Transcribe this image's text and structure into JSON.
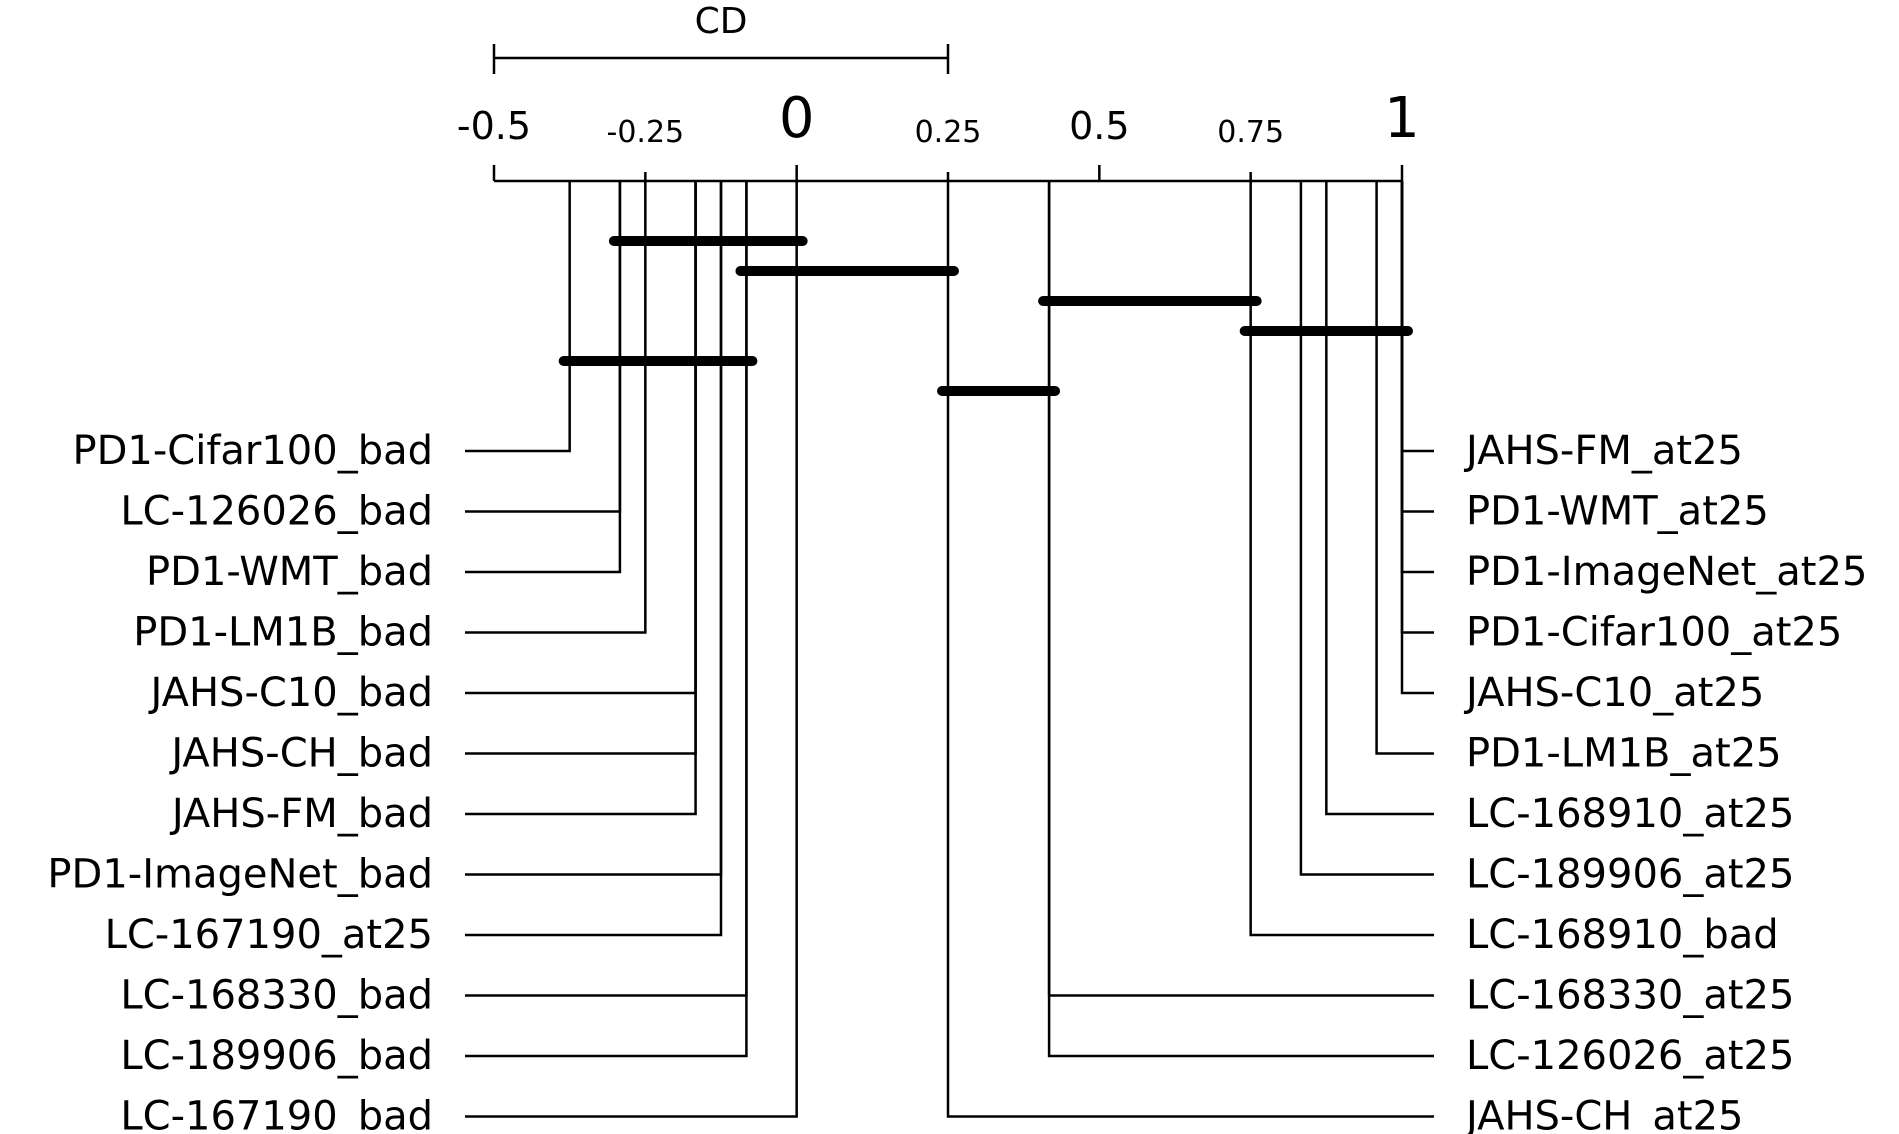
{
  "chart_data": {
    "type": "critical-difference-diagram",
    "cd_label": "CD",
    "cd_value": 0.75,
    "axis": {
      "min": -0.5,
      "max": 1,
      "major_ticks": [
        {
          "value": -0.5,
          "label": "-0.5"
        },
        {
          "value": 0,
          "label": "0"
        },
        {
          "value": 0.5,
          "label": "0.5"
        },
        {
          "value": 1,
          "label": "1"
        }
      ],
      "minor_ticks": [
        {
          "value": -0.25,
          "label": "-0.25"
        },
        {
          "value": 0.25,
          "label": "0.25"
        },
        {
          "value": 0.75,
          "label": "0.75"
        }
      ]
    },
    "left_methods": [
      {
        "name": "PD1-Cifar100_bad",
        "value": -0.375
      },
      {
        "name": "LC-126026_bad",
        "value": -0.292
      },
      {
        "name": "PD1-WMT_bad",
        "value": -0.292
      },
      {
        "name": "PD1-LM1B_bad",
        "value": -0.25
      },
      {
        "name": "JAHS-C10_bad",
        "value": -0.167
      },
      {
        "name": "JAHS-CH_bad",
        "value": -0.167
      },
      {
        "name": "JAHS-FM_bad",
        "value": -0.167
      },
      {
        "name": "PD1-ImageNet_bad",
        "value": -0.125
      },
      {
        "name": "LC-167190_at25",
        "value": -0.125
      },
      {
        "name": "LC-168330_bad",
        "value": -0.083
      },
      {
        "name": "LC-189906_bad",
        "value": -0.083
      },
      {
        "name": "LC-167190_bad",
        "value": 0.0
      }
    ],
    "right_methods": [
      {
        "name": "JAHS-FM_at25",
        "value": 1.0
      },
      {
        "name": "PD1-WMT_at25",
        "value": 1.0
      },
      {
        "name": "PD1-ImageNet_at25",
        "value": 1.0
      },
      {
        "name": "PD1-Cifar100_at25",
        "value": 1.0
      },
      {
        "name": "JAHS-C10_at25",
        "value": 1.0
      },
      {
        "name": "PD1-LM1B_at25",
        "value": 0.958
      },
      {
        "name": "LC-168910_at25",
        "value": 0.875
      },
      {
        "name": "LC-189906_at25",
        "value": 0.833
      },
      {
        "name": "LC-168910_bad",
        "value": 0.75
      },
      {
        "name": "LC-168330_at25",
        "value": 0.417
      },
      {
        "name": "LC-126026_at25",
        "value": 0.417
      },
      {
        "name": "JAHS-CH_at25",
        "value": 0.25
      }
    ],
    "cliques": [
      {
        "from": -0.292,
        "to": 0.0
      },
      {
        "from": -0.083,
        "to": 0.25
      },
      {
        "from": 0.417,
        "to": 0.75
      },
      {
        "from": 0.75,
        "to": 1.0
      },
      {
        "from": -0.375,
        "to": -0.083
      },
      {
        "from": 0.25,
        "to": 0.417
      }
    ]
  }
}
